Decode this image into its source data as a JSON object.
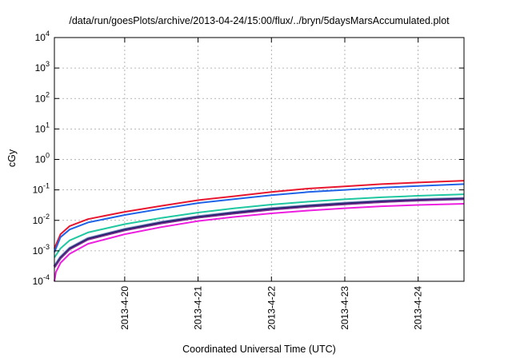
{
  "chart_data": {
    "type": "line",
    "title": "/data/run/goesPlots/archive/2013-04-24/15:00/flux/../bryn/5daysMarsAccumulated.plot",
    "xlabel": "Coordinated Universal Time (UTC)",
    "ylabel": "cGy",
    "y_scale": "log",
    "ylim": [
      0.0001,
      10000
    ],
    "xlim": [
      "2013-04-19T01:00",
      "2013-04-24T15:00"
    ],
    "grid": true,
    "legend": "none",
    "x_ticks": [
      "2013-4-20",
      "2013-4-21",
      "2013-4-22",
      "2013-4-23",
      "2013-4-24"
    ],
    "y_ticks": [
      {
        "base": "10",
        "exp": "-4"
      },
      {
        "base": "10",
        "exp": "-3"
      },
      {
        "base": "10",
        "exp": "-2"
      },
      {
        "base": "10",
        "exp": "-1"
      },
      {
        "base": "10",
        "exp": "0"
      },
      {
        "base": "10",
        "exp": "1"
      },
      {
        "base": "10",
        "exp": "2"
      },
      {
        "base": "10",
        "exp": "3"
      },
      {
        "base": "10",
        "exp": "4"
      }
    ],
    "series": [
      {
        "color": "#e8162e",
        "width": 2,
        "x": [
          "2013-04-19T01:00",
          "2013-04-19T03:00",
          "2013-04-19T06:00",
          "2013-04-19T12:00",
          "2013-04-20T00:00",
          "2013-04-20T12:00",
          "2013-04-21T00:00",
          "2013-04-21T12:00",
          "2013-04-22T00:00",
          "2013-04-22T12:00",
          "2013-04-23T00:00",
          "2013-04-23T12:00",
          "2013-04-24T00:00",
          "2013-04-24T15:00"
        ],
        "values": [
          0.0012,
          0.0035,
          0.0065,
          0.011,
          0.019,
          0.03,
          0.046,
          0.062,
          0.085,
          0.11,
          0.13,
          0.155,
          0.175,
          0.2
        ]
      },
      {
        "color": "#1e63e8",
        "width": 2,
        "x": [
          "2013-04-19T01:00",
          "2013-04-19T03:00",
          "2013-04-19T06:00",
          "2013-04-19T12:00",
          "2013-04-20T00:00",
          "2013-04-20T12:00",
          "2013-04-21T00:00",
          "2013-04-21T12:00",
          "2013-04-22T00:00",
          "2013-04-22T12:00",
          "2013-04-23T00:00",
          "2013-04-23T12:00",
          "2013-04-24T00:00",
          "2013-04-24T15:00"
        ],
        "values": [
          0.0009,
          0.0028,
          0.005,
          0.0085,
          0.015,
          0.024,
          0.037,
          0.05,
          0.067,
          0.085,
          0.1,
          0.118,
          0.135,
          0.155
        ]
      },
      {
        "color": "#1fc8a0",
        "width": 2,
        "x": [
          "2013-04-19T01:00",
          "2013-04-19T03:00",
          "2013-04-19T06:00",
          "2013-04-19T12:00",
          "2013-04-20T00:00",
          "2013-04-20T12:00",
          "2013-04-21T00:00",
          "2013-04-21T12:00",
          "2013-04-22T00:00",
          "2013-04-22T12:00",
          "2013-04-23T00:00",
          "2013-04-23T12:00",
          "2013-04-24T00:00",
          "2013-04-24T15:00"
        ],
        "values": [
          0.0006,
          0.0012,
          0.0022,
          0.004,
          0.0075,
          0.012,
          0.018,
          0.025,
          0.033,
          0.041,
          0.049,
          0.057,
          0.064,
          0.072
        ]
      },
      {
        "color": "#8a9ac8",
        "width": 4,
        "x": [
          "2013-04-19T01:00",
          "2013-04-19T03:00",
          "2013-04-19T06:00",
          "2013-04-19T12:00",
          "2013-04-20T00:00",
          "2013-04-20T12:00",
          "2013-04-21T00:00",
          "2013-04-21T12:00",
          "2013-04-22T00:00",
          "2013-04-22T12:00",
          "2013-04-23T00:00",
          "2013-04-23T12:00",
          "2013-04-24T00:00",
          "2013-04-24T15:00"
        ],
        "values": [
          0.0003,
          0.0006,
          0.0012,
          0.0025,
          0.005,
          0.0085,
          0.013,
          0.018,
          0.024,
          0.03,
          0.036,
          0.042,
          0.047,
          0.052
        ]
      },
      {
        "color": "#23236e",
        "width": 2,
        "x": [
          "2013-04-19T01:00",
          "2013-04-19T03:00",
          "2013-04-19T06:00",
          "2013-04-19T12:00",
          "2013-04-20T00:00",
          "2013-04-20T12:00",
          "2013-04-21T00:00",
          "2013-04-21T12:00",
          "2013-04-22T00:00",
          "2013-04-22T12:00",
          "2013-04-23T00:00",
          "2013-04-23T12:00",
          "2013-04-24T00:00",
          "2013-04-24T15:00"
        ],
        "values": [
          0.0003,
          0.0006,
          0.0012,
          0.0025,
          0.005,
          0.0085,
          0.013,
          0.018,
          0.024,
          0.03,
          0.036,
          0.042,
          0.047,
          0.052
        ]
      },
      {
        "color": "#7a2a8c",
        "width": 1.5,
        "x": [
          "2013-04-19T01:00",
          "2013-04-19T03:00",
          "2013-04-19T06:00",
          "2013-04-19T12:00",
          "2013-04-20T00:00",
          "2013-04-20T12:00",
          "2013-04-21T00:00",
          "2013-04-21T12:00",
          "2013-04-22T00:00",
          "2013-04-22T12:00",
          "2013-04-23T00:00",
          "2013-04-23T12:00",
          "2013-04-24T00:00",
          "2013-04-24T15:00"
        ],
        "values": [
          0.00028,
          0.00055,
          0.0011,
          0.0023,
          0.0046,
          0.0078,
          0.012,
          0.0165,
          0.022,
          0.0275,
          0.033,
          0.039,
          0.044,
          0.049
        ]
      },
      {
        "color": "#ee1ee0",
        "width": 2,
        "x": [
          "2013-04-19T01:00",
          "2013-04-19T01:30",
          "2013-04-19T03:00",
          "2013-04-19T06:00",
          "2013-04-19T12:00",
          "2013-04-20T00:00",
          "2013-04-20T12:00",
          "2013-04-21T00:00",
          "2013-04-21T12:00",
          "2013-04-22T00:00",
          "2013-04-22T12:00",
          "2013-04-23T00:00",
          "2013-04-23T12:00",
          "2013-04-24T00:00",
          "2013-04-24T15:00"
        ],
        "values": [
          0.0001,
          0.0002,
          0.0004,
          0.0008,
          0.0017,
          0.0035,
          0.006,
          0.0095,
          0.013,
          0.017,
          0.021,
          0.025,
          0.029,
          0.032,
          0.035
        ]
      }
    ]
  }
}
